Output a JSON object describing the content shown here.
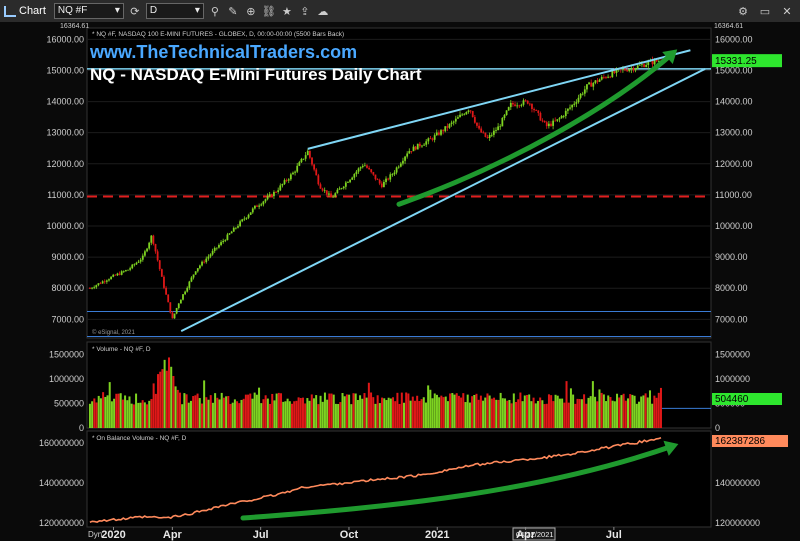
{
  "toolbar": {
    "app_label": "Chart",
    "symbol_value": "NQ #F",
    "interval_value": "D"
  },
  "main": {
    "website": "www.TheTechnicalTraders.com",
    "chart_title": "NQ - NASDAQ E-Mini Futures Daily Chart",
    "header_info": "* NQ #F, NASDAQ 100 E-MINI FUTURES - GLOBEX, D, 00:00-00:00 (5500 Bars Back)",
    "max_label": "16364.61",
    "watermark": "© eSignal, 2021"
  },
  "volume_pane": {
    "label": "* Volume - NQ #F, D"
  },
  "obv_pane": {
    "label": "* On Balance Volume - NQ #F, D"
  },
  "x_axis": {
    "dyn_label": "Dyn",
    "cursor_date": "04/22/2021",
    "ticks": [
      {
        "label": "2020",
        "x_index": 0.5
      },
      {
        "label": "Apr",
        "x_index": 2.5
      },
      {
        "label": "Jul",
        "x_index": 5.5
      },
      {
        "label": "Oct",
        "x_index": 8.5
      },
      {
        "label": "2021",
        "x_index": 11.5
      },
      {
        "label": "Apr",
        "x_index": 14.5
      },
      {
        "label": "Jul",
        "x_index": 17.5
      }
    ]
  },
  "colors": {
    "up": "#7ed321",
    "down": "#e01818",
    "trendline": "#7fd6f5",
    "arrow": "#1f9a2e",
    "support": "#e01e1e",
    "obv": "#ff8a5c",
    "price_badge": "#2ee62e",
    "volume_badge": "#2ee62e",
    "obv_badge": "#ff8a5c"
  },
  "chart_data": [
    {
      "type": "candlestick",
      "name": "NQ #F",
      "x_unit": "months since Dec 2019",
      "ylim": [
        6400,
        16364.61
      ],
      "y_ticks": [
        7000,
        8000,
        9000,
        10000,
        11000,
        12000,
        13000,
        14000,
        15000,
        16000
      ],
      "last_value": "15331.25",
      "price_path": [
        [
          -0.3,
          8000
        ],
        [
          0.3,
          8300
        ],
        [
          1,
          8600
        ],
        [
          1.5,
          9000
        ],
        [
          1.8,
          9700
        ],
        [
          2.2,
          8100
        ],
        [
          2.5,
          7000
        ],
        [
          2.7,
          7500
        ],
        [
          3.3,
          8600
        ],
        [
          4,
          9300
        ],
        [
          4.6,
          9900
        ],
        [
          5.3,
          10600
        ],
        [
          6,
          11100
        ],
        [
          6.6,
          11700
        ],
        [
          7.1,
          12400
        ],
        [
          7.5,
          11300
        ],
        [
          7.9,
          10900
        ],
        [
          8.5,
          11500
        ],
        [
          9,
          12000
        ],
        [
          9.6,
          11300
        ],
        [
          10,
          11700
        ],
        [
          10.5,
          12400
        ],
        [
          11.3,
          12800
        ],
        [
          12,
          13300
        ],
        [
          12.6,
          13800
        ],
        [
          12.9,
          13100
        ],
        [
          13.2,
          12800
        ],
        [
          13.6,
          13200
        ],
        [
          14,
          13900
        ],
        [
          14.6,
          14000
        ],
        [
          15.2,
          13200
        ],
        [
          15.6,
          13400
        ],
        [
          16.1,
          13900
        ],
        [
          16.6,
          14500
        ],
        [
          17.2,
          14800
        ],
        [
          17.7,
          15000
        ],
        [
          18.2,
          15100
        ],
        [
          18.7,
          15250
        ],
        [
          19.1,
          15331
        ]
      ],
      "support_level": 10950,
      "horizontal_lines": [
        15050,
        7250,
        6450
      ],
      "trendline_upper": [
        [
          7.1,
          12480
        ],
        [
          20.1,
          15650
        ]
      ],
      "trendline_lower": [
        [
          2.8,
          6620
        ],
        [
          20.6,
          15050
        ]
      ],
      "arrow_path": [
        [
          10.2,
          10700
        ],
        [
          13.8,
          11900
        ],
        [
          17.4,
          13800
        ],
        [
          19.5,
          15550
        ]
      ]
    },
    {
      "type": "bar",
      "name": "Volume - NQ #F, D",
      "ylim": [
        0,
        1750000
      ],
      "y_ticks": [
        0,
        500000,
        1000000,
        1500000
      ],
      "last_value": "504460",
      "reference_level": 400000
    },
    {
      "type": "line",
      "name": "On Balance Volume - NQ #F, D",
      "ylim": [
        118000000,
        166000000
      ],
      "y_ticks": [
        120000000,
        140000000,
        160000000
      ],
      "last_value": "162387286",
      "path": [
        [
          -0.3,
          120800000
        ],
        [
          0.5,
          121500000
        ],
        [
          1.5,
          123000000
        ],
        [
          2.3,
          122500000
        ],
        [
          3,
          124200000
        ],
        [
          4,
          128000000
        ],
        [
          5,
          131000000
        ],
        [
          6,
          134000000
        ],
        [
          7,
          138000000
        ],
        [
          8,
          139500000
        ],
        [
          9,
          141000000
        ],
        [
          10,
          142500000
        ],
        [
          11,
          144000000
        ],
        [
          12,
          147000000
        ],
        [
          13,
          149500000
        ],
        [
          14,
          151000000
        ],
        [
          15,
          152500000
        ],
        [
          16,
          154500000
        ],
        [
          17,
          157000000
        ],
        [
          18,
          159500000
        ],
        [
          19.1,
          162387286
        ]
      ],
      "arrow_path": [
        [
          4.9,
          122500000
        ],
        [
          10,
          128000000
        ],
        [
          15,
          135500000
        ],
        [
          19.5,
          158500000
        ]
      ]
    }
  ]
}
